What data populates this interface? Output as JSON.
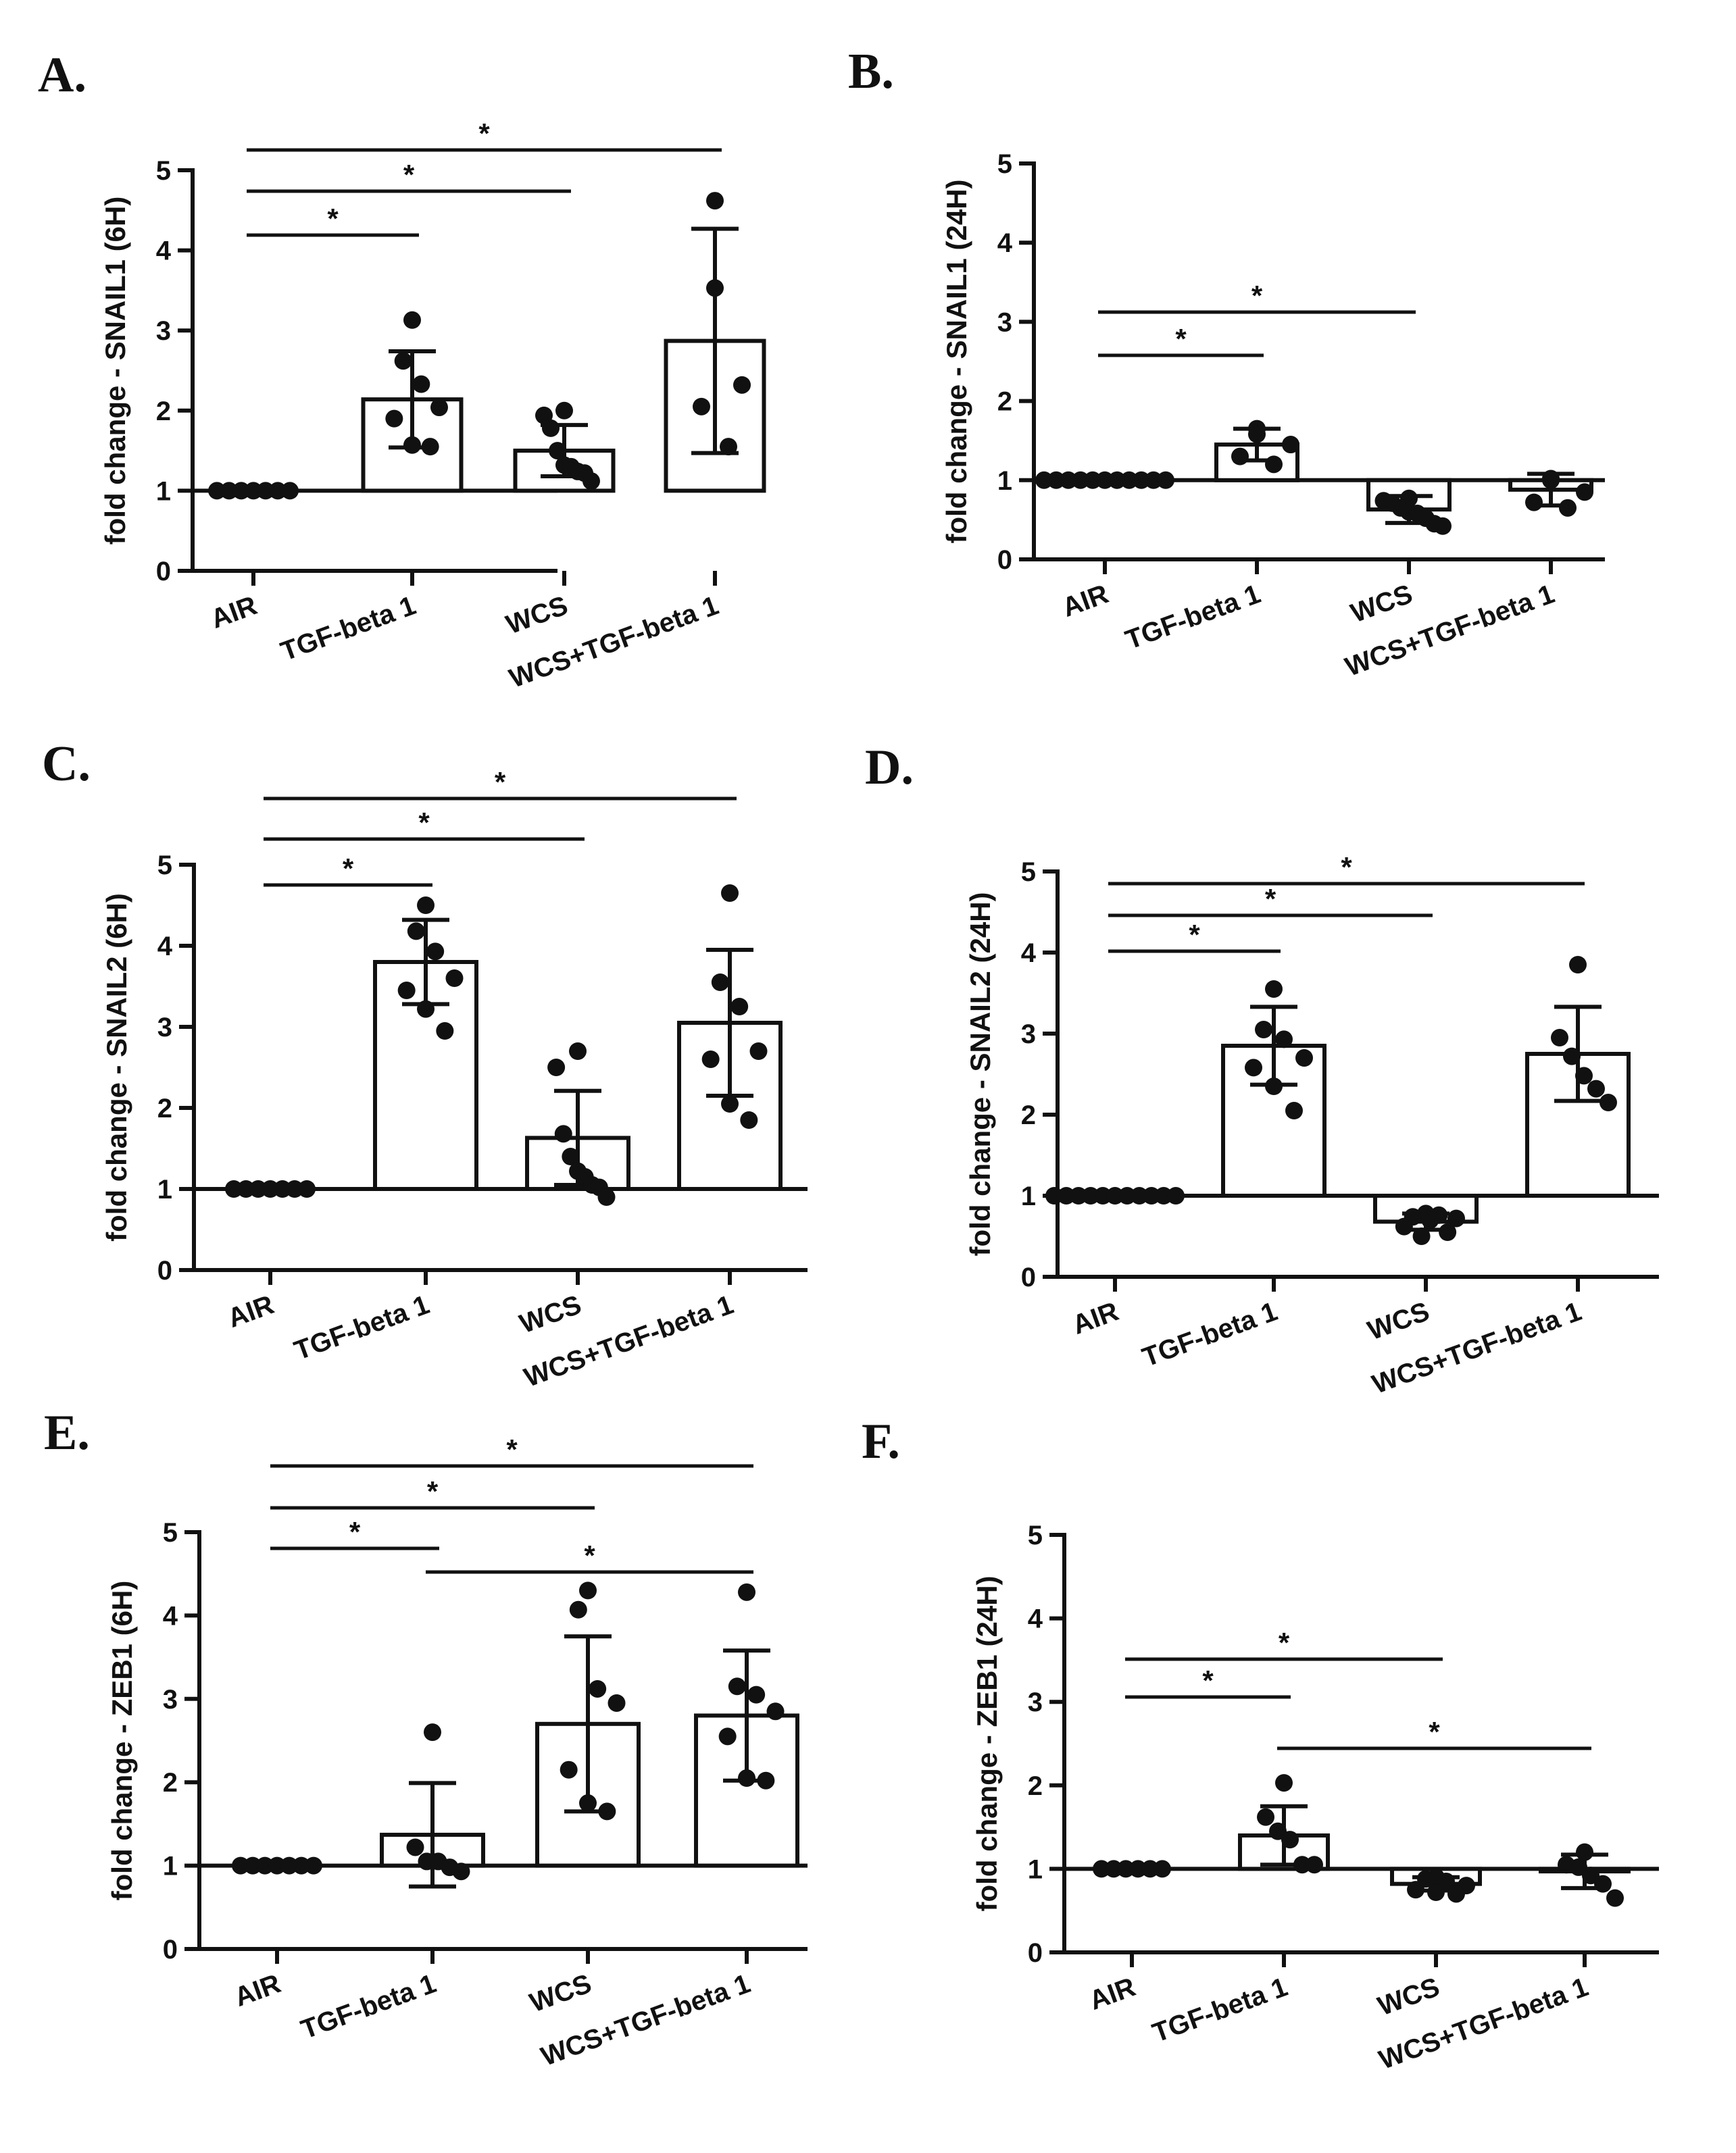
{
  "chart_data": [
    {
      "panel": "A.",
      "type": "bar",
      "categories": [
        "AIR",
        "TGF-beta 1",
        "WCS",
        "WCS+TGF-beta 1"
      ],
      "values": [
        1.0,
        2.14,
        1.5,
        2.87
      ],
      "sd": [
        0,
        0.6,
        0.32,
        1.4
      ],
      "points": [
        [
          1,
          1,
          1,
          1,
          1,
          1,
          1
        ],
        [
          3.13,
          2.62,
          2.33,
          2.04,
          1.9,
          1.57,
          1.55
        ],
        [
          2.0,
          1.94,
          1.78,
          1.5,
          1.32,
          1.3,
          1.24,
          1.22,
          1.12
        ],
        [
          4.62,
          3.53,
          2.32,
          2.05,
          1.55
        ]
      ],
      "ylabel": "fold change - SNAIL1 (6H)",
      "ylim": [
        0,
        5
      ],
      "yticks": [
        "0",
        "1",
        "2",
        "3",
        "4",
        "5"
      ],
      "significance": [
        {
          "from": 0,
          "to": 1,
          "label": "*"
        },
        {
          "from": 0,
          "to": 2,
          "label": "*"
        },
        {
          "from": 0,
          "to": 3,
          "label": "*"
        }
      ]
    },
    {
      "panel": "B.",
      "type": "bar",
      "categories": [
        "AIR",
        "TGF-beta 1",
        "WCS",
        "WCS+TGF-beta 1"
      ],
      "values": [
        1.0,
        1.45,
        0.63,
        0.88
      ],
      "sd": [
        0,
        0.2,
        0.17,
        0.2
      ],
      "points": [
        [
          1,
          1,
          1,
          1,
          1,
          1,
          1,
          1,
          1,
          1,
          1
        ],
        [
          1.65,
          1.58,
          1.45,
          1.3,
          1.2
        ],
        [
          0.77,
          0.74,
          0.71,
          0.65,
          0.6,
          0.58,
          0.52,
          0.45,
          0.42
        ],
        [
          1.02,
          1.0,
          0.85,
          0.72,
          0.65
        ]
      ],
      "ylabel": "fold change - SNAIL1 (24H)",
      "ylim": [
        0,
        5
      ],
      "yticks": [
        "0",
        "1",
        "2",
        "3",
        "4",
        "5"
      ],
      "significance": [
        {
          "from": 0,
          "to": 1,
          "label": "*"
        },
        {
          "from": 0,
          "to": 2,
          "label": "*"
        }
      ]
    },
    {
      "panel": "C.",
      "type": "bar",
      "categories": [
        "AIR",
        "TGF-beta 1",
        "WCS",
        "WCS+TGF-beta 1"
      ],
      "values": [
        1.0,
        3.8,
        1.63,
        3.05
      ],
      "sd": [
        0,
        0.52,
        0.58,
        0.9
      ],
      "points": [
        [
          1,
          1,
          1,
          1,
          1,
          1,
          1
        ],
        [
          4.5,
          4.18,
          3.93,
          3.6,
          3.45,
          3.22,
          2.95
        ],
        [
          2.7,
          2.5,
          1.68,
          1.4,
          1.22,
          1.15,
          1.05,
          1.02,
          0.9
        ],
        [
          4.65,
          3.55,
          3.25,
          2.7,
          2.6,
          2.05,
          1.85
        ]
      ],
      "ylabel": "fold change - SNAIL2 (6H)",
      "ylim": [
        0,
        5
      ],
      "yticks": [
        "0",
        "1",
        "2",
        "3",
        "4",
        "5"
      ],
      "significance": [
        {
          "from": 0,
          "to": 1,
          "label": "*"
        },
        {
          "from": 0,
          "to": 2,
          "label": "*"
        },
        {
          "from": 0,
          "to": 3,
          "label": "*"
        }
      ]
    },
    {
      "panel": "D.",
      "type": "bar",
      "categories": [
        "AIR",
        "TGF-beta 1",
        "WCS",
        "WCS+TGF-beta 1"
      ],
      "values": [
        1.0,
        2.85,
        0.68,
        2.75
      ],
      "sd": [
        0,
        0.48,
        0.1,
        0.58
      ],
      "points": [
        [
          1,
          1,
          1,
          1,
          1,
          1,
          1,
          1,
          1,
          1,
          1
        ],
        [
          3.55,
          3.05,
          2.93,
          2.7,
          2.58,
          2.35,
          2.05
        ],
        [
          0.78,
          0.76,
          0.74,
          0.72,
          0.7,
          0.62,
          0.55,
          0.5
        ],
        [
          3.85,
          2.95,
          2.72,
          2.48,
          2.32,
          2.15
        ]
      ],
      "ylabel": "fold change - SNAIL2 (24H)",
      "ylim": [
        0,
        5
      ],
      "yticks": [
        "0",
        "1",
        "2",
        "3",
        "4",
        "5"
      ],
      "significance": [
        {
          "from": 0,
          "to": 1,
          "label": "*"
        },
        {
          "from": 0,
          "to": 2,
          "label": "*"
        },
        {
          "from": 0,
          "to": 3,
          "label": "*"
        }
      ]
    },
    {
      "panel": "E.",
      "type": "bar",
      "categories": [
        "AIR",
        "TGF-beta 1",
        "WCS",
        "WCS+TGF-beta 1"
      ],
      "values": [
        1.0,
        1.37,
        2.7,
        2.8
      ],
      "sd": [
        0,
        0.62,
        1.05,
        0.78
      ],
      "points": [
        [
          1,
          1,
          1,
          1,
          1,
          1,
          1
        ],
        [
          2.6,
          1.22,
          1.05,
          1.05,
          0.98,
          0.93
        ],
        [
          4.3,
          4.07,
          3.12,
          2.95,
          2.15,
          1.75,
          1.65
        ],
        [
          4.28,
          3.15,
          3.05,
          2.85,
          2.55,
          2.05,
          2.02
        ]
      ],
      "ylabel": "fold change - ZEB1 (6H)",
      "ylim": [
        0,
        5
      ],
      "yticks": [
        "0",
        "1",
        "2",
        "3",
        "4",
        "5"
      ],
      "significance": [
        {
          "from": 0,
          "to": 1,
          "label": "*"
        },
        {
          "from": 0,
          "to": 2,
          "label": "*"
        },
        {
          "from": 0,
          "to": 3,
          "label": "*"
        },
        {
          "from": 1,
          "to": 3,
          "label": "*"
        }
      ]
    },
    {
      "panel": "F.",
      "type": "bar",
      "categories": [
        "AIR",
        "TGF-beta 1",
        "WCS",
        "WCS+TGF-beta 1"
      ],
      "values": [
        1.0,
        1.4,
        0.82,
        0.97
      ],
      "sd": [
        0,
        0.35,
        0.08,
        0.2
      ],
      "points": [
        [
          1,
          1,
          1,
          1,
          1,
          1
        ],
        [
          2.03,
          1.62,
          1.45,
          1.35,
          1.05,
          1.05
        ],
        [
          0.9,
          0.88,
          0.85,
          0.8,
          0.75,
          0.72,
          0.7
        ],
        [
          1.2,
          1.05,
          1.02,
          0.92,
          0.82,
          0.65
        ]
      ],
      "ylabel": "fold change - ZEB1 (24H)",
      "ylim": [
        0,
        5
      ],
      "yticks": [
        "0",
        "1",
        "2",
        "3",
        "4",
        "5"
      ],
      "significance": [
        {
          "from": 0,
          "to": 1,
          "label": "*"
        },
        {
          "from": 0,
          "to": 2,
          "label": "*"
        },
        {
          "from": 1,
          "to": 3,
          "label": "*"
        }
      ]
    }
  ]
}
